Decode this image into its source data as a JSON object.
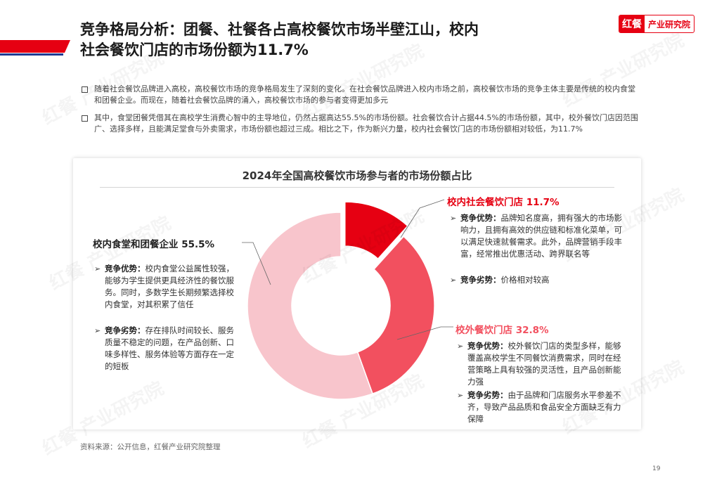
{
  "header": {
    "title_line1": "竞争格局分析：团餐、社餐各占高校餐饮市场半壁江山，校内",
    "title_line2": "社会餐饮门店的市场份额为11.7%",
    "brand_mark": "红餐",
    "brand_text": "产业研究院",
    "brand_color": "#e60012"
  },
  "bullets": [
    "随着社会餐饮品牌进入高校，高校餐饮市场的竞争格局发生了深刻的变化。在社会餐饮品牌进入校内市场之前，高校餐饮市场的竞争主体主要是传统的校内食堂和团餐企业。而现在，随着社会餐饮品牌的涌入，高校餐饮市场的参与者变得更加多元",
    "其中，食堂团餐凭借其在高校学生消费心智中的主导地位，仍然占据高达55.5%的市场份额。社会餐饮合计占据44.5%的市场份额，其中，校外餐饮门店因范围广、选择多样，且能满足堂食与外卖需求，市场份额也超过三成。相比之下，作为新兴力量，校内社会餐饮门店的市场份额相对较低，为11.7%"
  ],
  "chart_data": {
    "type": "pie",
    "style": "donut",
    "title": "2024年全国高校餐饮市场参与者的市场份额占比",
    "categories": [
      "校内食堂和团餐企业",
      "校外餐饮门店",
      "校内社会餐饮门店"
    ],
    "values": [
      55.5,
      32.8,
      11.7
    ],
    "value_labels": [
      "55.5%",
      "32.8%",
      "11.7%"
    ],
    "colors": [
      "#f8c5cc",
      "#f2505f",
      "#e60012"
    ],
    "exploded": [
      false,
      false,
      true
    ]
  },
  "segments": {
    "canteen": {
      "name": "校内食堂和团餐企业",
      "value": "55.5%",
      "adv_label": "竞争优势",
      "adv_text": "校内食堂公益属性较强，能够为学生提供更具经济性的餐饮服务。同时，多数学生长期频繁选择校内食堂，对其积累了信任",
      "disadv_label": "竞争劣势",
      "disadv_text": "存在排队时间较长、服务质量不稳定的问题，在产品创新、口味多样性、服务体验等方面存在一定的短板"
    },
    "campus_social": {
      "name": "校内社会餐饮门店",
      "value": "11.7%",
      "adv_label": "竞争优势",
      "adv_text": "品牌知名度高，拥有强大的市场影响力，且拥有高效的供应链和标准化菜单，可以满足快速就餐需求。此外，品牌营销手段丰富，经常推出优惠活动、跨界联名等",
      "disadv_label": "竞争劣势",
      "disadv_text": "价格相对较高"
    },
    "offcampus": {
      "name": "校外餐饮门店",
      "value": "32.8%",
      "adv_label": "竞争优势",
      "adv_text": "校外餐饮门店的类型多样，能够覆盖高校学生不同餐饮消费需求，同时在经营策略上具有较强的灵活性，且产品创新能力强",
      "disadv_label": "竞争劣势",
      "disadv_text": "由于品牌和门店服务水平参差不齐，导致产品品质和食品安全方面缺乏有力保障"
    }
  },
  "footer": {
    "source": "资料来源：公开信息，红餐产业研究院整理",
    "page_number": "19"
  },
  "watermark": {
    "mark": "红餐",
    "text": "产业研究院"
  },
  "icons": {
    "bullet": "square-bullet-icon",
    "sub_bullet": "arrow-right-icon"
  }
}
